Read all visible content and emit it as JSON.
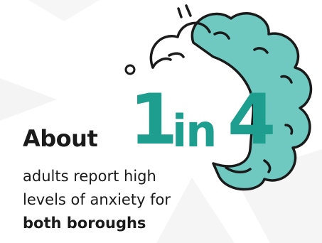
{
  "headline": {
    "prefix": "About",
    "number_1": "1",
    "connector": "in",
    "number_2": "4"
  },
  "body": {
    "line_1": "adults report high",
    "line_2": "levels of anxiety for",
    "line_3": "both boroughs"
  },
  "colors": {
    "accent": "#1e9e8f",
    "cloud_fill": "#6fc9c0",
    "text": "#1a1a1a",
    "watermark": "#f3f3f3"
  },
  "icons": [
    "thought-cloud-icon",
    "small-circle-icon",
    "sparkle-lines-icon"
  ]
}
